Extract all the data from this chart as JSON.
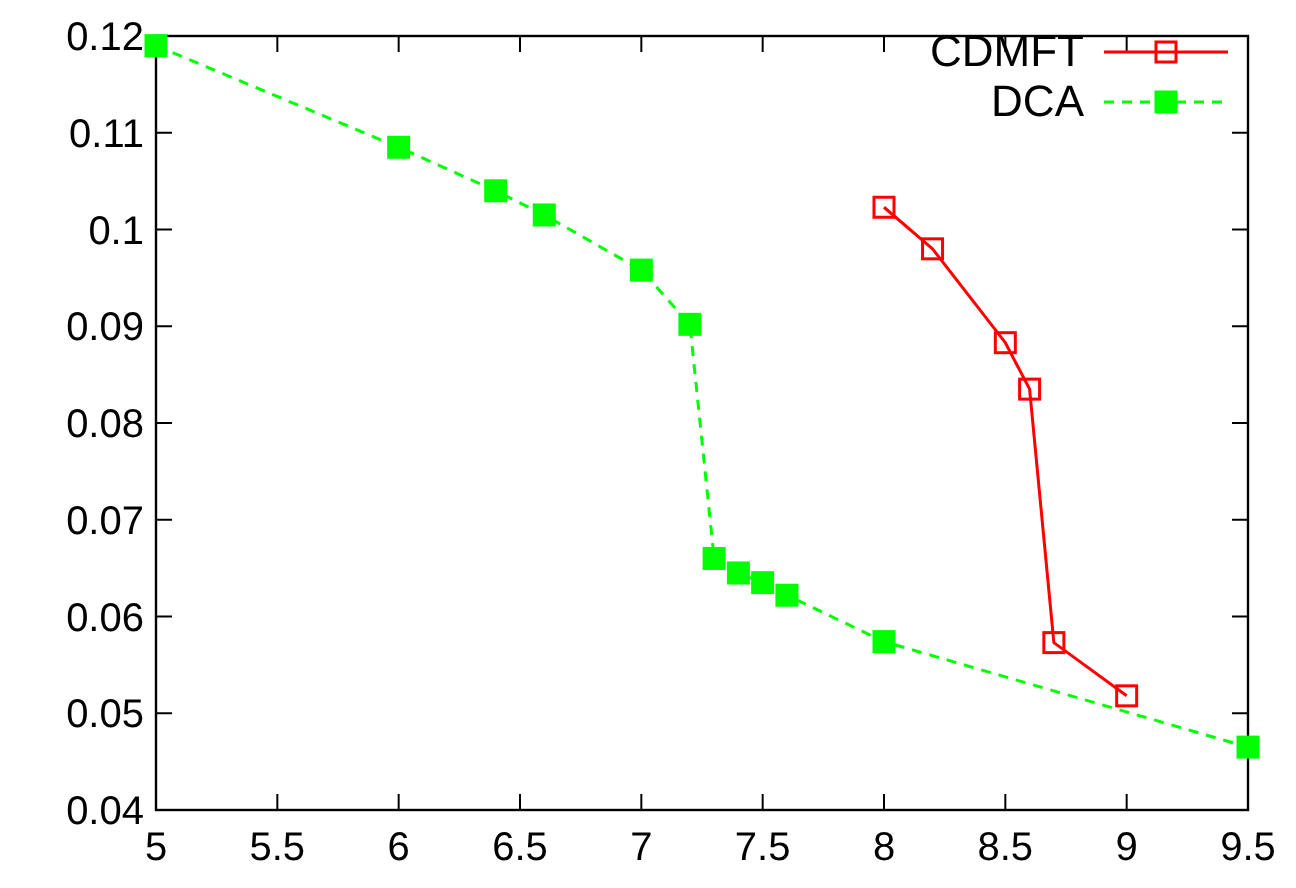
{
  "chart_data": {
    "type": "line",
    "xlim": [
      5,
      9.5
    ],
    "xticks": [
      5,
      5.5,
      6,
      6.5,
      7,
      7.5,
      8,
      8.5,
      9,
      9.5
    ],
    "ylim": [
      0.04,
      0.12
    ],
    "yticks": [
      0.04,
      0.05,
      0.06,
      0.07,
      0.08,
      0.09,
      0.1,
      0.11,
      0.12
    ],
    "grid": false,
    "legend": "top right",
    "marker": "square",
    "series": [
      {
        "name": "CDMFT",
        "color": "#ff0000",
        "line_style": "solid",
        "x": [
          8,
          8.2,
          8.5,
          8.6,
          8.7,
          9
        ],
        "values": [
          0.1023,
          0.098,
          0.0883,
          0.0835,
          0.0573,
          0.0518
        ]
      },
      {
        "name": "DCA",
        "color": "#00ff00",
        "line_style": "dashed",
        "x": [
          5,
          6,
          6.4,
          6.6,
          7,
          7.2,
          7.3,
          7.4,
          7.5,
          7.6,
          8,
          9.5
        ],
        "values": [
          0.119,
          0.1085,
          0.104,
          0.1015,
          0.0958,
          0.0902,
          0.066,
          0.0645,
          0.0635,
          0.0622,
          0.0574,
          0.0465
        ]
      }
    ]
  }
}
